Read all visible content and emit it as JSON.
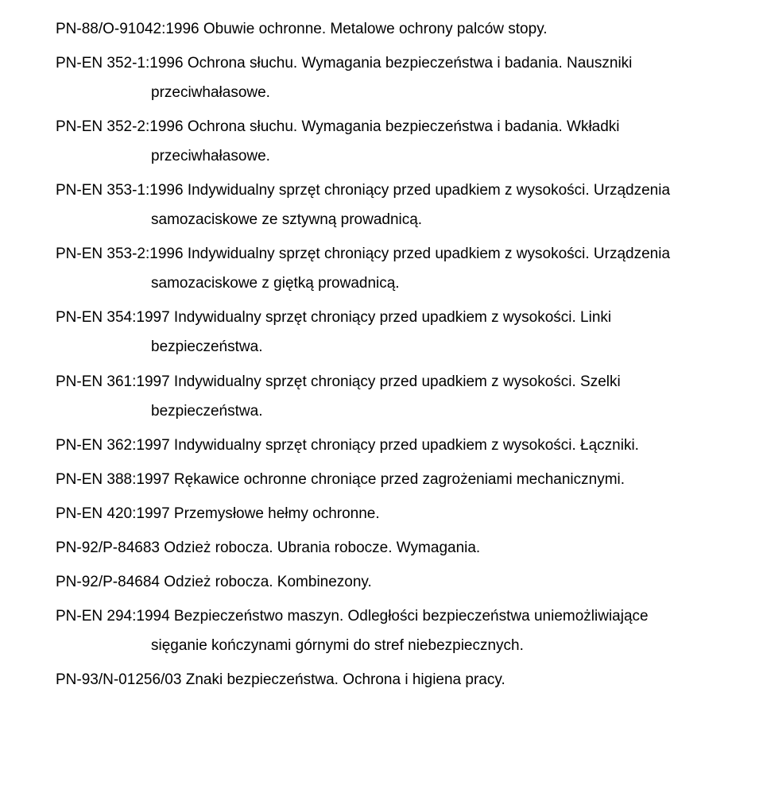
{
  "entries": [
    {
      "line1": "PN-88/O-91042:1996 Obuwie ochronne. Metalowe ochrony palców stopy.",
      "line2": null
    },
    {
      "line1": "PN-EN 352-1:1996 Ochrona słuchu. Wymagania bezpieczeństwa i badania. Nauszniki",
      "line2": "przeciwhałasowe."
    },
    {
      "line1": "PN-EN 352-2:1996 Ochrona słuchu. Wymagania bezpieczeństwa i badania. Wkładki",
      "line2": "przeciwhałasowe."
    },
    {
      "line1": "PN-EN 353-1:1996 Indywidualny sprzęt chroniący przed upadkiem z wysokości. Urządzenia",
      "line2": "samozaciskowe ze sztywną prowadnicą."
    },
    {
      "line1": "PN-EN 353-2:1996 Indywidualny sprzęt chroniący przed upadkiem z wysokości. Urządzenia",
      "line2": "samozaciskowe z giętką prowadnicą."
    },
    {
      "line1": "PN-EN 354:1997 Indywidualny sprzęt chroniący przed upadkiem z wysokości. Linki",
      "line2": "bezpieczeństwa."
    },
    {
      "line1": "PN-EN 361:1997 Indywidualny sprzęt chroniący przed upadkiem z wysokości. Szelki",
      "line2": "bezpieczeństwa."
    },
    {
      "line1": "PN-EN 362:1997 Indywidualny sprzęt chroniący przed upadkiem z wysokości. Łączniki.",
      "line2": null
    },
    {
      "line1": "PN-EN 388:1997 Rękawice ochronne chroniące przed zagrożeniami mechanicznymi.",
      "line2": null
    },
    {
      "line1": "PN-EN 420:1997 Przemysłowe hełmy ochronne.",
      "line2": null
    },
    {
      "line1": "PN-92/P-84683 Odzież robocza. Ubrania robocze. Wymagania.",
      "line2": null
    },
    {
      "line1": "PN-92/P-84684 Odzież robocza. Kombinezony.",
      "line2": null
    },
    {
      "line1": "PN-EN 294:1994 Bezpieczeństwo maszyn. Odległości bezpieczeństwa uniemożliwiające",
      "line2": "sięganie kończynami górnymi do stref niebezpiecznych."
    },
    {
      "line1": "PN-93/N-01256/03 Znaki bezpieczeństwa. Ochrona i higiena pracy.",
      "line2": null
    }
  ]
}
